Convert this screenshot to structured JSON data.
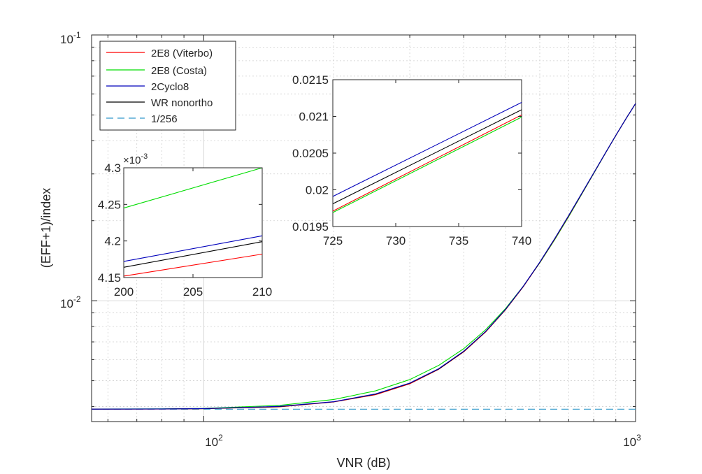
{
  "colors": {
    "viterbo": "#ff0000",
    "costa": "#00dd00",
    "cyclo": "#0000bb",
    "wr": "#000000",
    "ref": "#3399cc",
    "grid": "#cfcfcf"
  },
  "chart_data": [
    {
      "id": "main",
      "type": "line",
      "xscale": "log",
      "yscale": "log",
      "xlabel": "VNR (dB)",
      "ylabel": "(EFF+1)/index",
      "xlim": [
        55,
        1000
      ],
      "ylim": [
        0.00351,
        0.1
      ],
      "grid": true,
      "legend_position": "top-left",
      "x_ticks": [
        {
          "value": 100,
          "base": "10",
          "exp": "2"
        },
        {
          "value": 1000,
          "base": "10",
          "exp": "3"
        }
      ],
      "y_ticks": [
        {
          "value": 0.01,
          "base": "10",
          "exp": "-2"
        },
        {
          "value": 0.1,
          "base": "10",
          "exp": "-1"
        }
      ],
      "series": [
        {
          "name": "2E8 (Viterbo)",
          "color_key": "viterbo",
          "dash": false,
          "x": [
            55,
            80,
            100,
            150,
            200,
            250,
            300,
            350,
            400,
            450,
            500,
            550,
            600,
            650,
            700,
            750,
            800,
            850,
            900,
            950,
            1000
          ],
          "y": [
            0.003911,
            0.003913,
            0.003923,
            0.003986,
            0.00416,
            0.00443,
            0.00487,
            0.00552,
            0.00642,
            0.00764,
            0.00925,
            0.01131,
            0.01392,
            0.01708,
            0.02084,
            0.02521,
            0.03019,
            0.03576,
            0.04186,
            0.04838,
            0.0552
          ]
        },
        {
          "name": "2E8 (Costa)",
          "color_key": "costa",
          "dash": false,
          "x": [
            55,
            80,
            100,
            150,
            200,
            250,
            300,
            350,
            400,
            450,
            500,
            550,
            600,
            650,
            700,
            750,
            800,
            850,
            900,
            950,
            1000
          ],
          "y": [
            0.003912,
            0.003918,
            0.003935,
            0.00404,
            0.00425,
            0.00458,
            0.00505,
            0.00571,
            0.0066,
            0.00779,
            0.00935,
            0.01136,
            0.01388,
            0.01698,
            0.02071,
            0.02511,
            0.03011,
            0.03571,
            0.04183,
            0.04836,
            0.0552
          ]
        },
        {
          "name": "2Cyclo8",
          "color_key": "cyclo",
          "dash": false,
          "x": [
            55,
            80,
            100,
            150,
            200,
            250,
            300,
            350,
            400,
            450,
            500,
            550,
            600,
            650,
            700,
            750,
            800,
            850,
            900,
            950,
            1000
          ],
          "y": [
            0.003911,
            0.003915,
            0.003927,
            0.004005,
            0.00417,
            0.00446,
            0.0049,
            0.00555,
            0.00646,
            0.00768,
            0.00929,
            0.01136,
            0.01397,
            0.01716,
            0.02094,
            0.02531,
            0.03026,
            0.03581,
            0.04189,
            0.0484,
            0.0552
          ]
        },
        {
          "name": "WR nonortho",
          "color_key": "wr",
          "dash": false,
          "x": [
            55,
            80,
            100,
            150,
            200,
            250,
            300,
            350,
            400,
            450,
            500,
            550,
            600,
            650,
            700,
            750,
            800,
            850,
            900,
            950,
            1000
          ],
          "y": [
            0.003911,
            0.003914,
            0.003925,
            0.003995,
            0.004165,
            0.00445,
            0.00489,
            0.00553,
            0.00644,
            0.00766,
            0.00927,
            0.01134,
            0.01394,
            0.01712,
            0.02089,
            0.02526,
            0.03022,
            0.03578,
            0.04188,
            0.04839,
            0.0552
          ]
        },
        {
          "name": "1/256",
          "color_key": "ref",
          "dash": true,
          "x": [
            55,
            1000
          ],
          "y": [
            0.00390625,
            0.00390625
          ]
        }
      ]
    },
    {
      "id": "inset-left",
      "type": "line",
      "xlim": [
        200,
        210
      ],
      "ylim": [
        4.15,
        4.3
      ],
      "multiplier_base": "10",
      "multiplier_exp": "-3",
      "x_ticks": [
        {
          "value": 200,
          "label": "200"
        },
        {
          "value": 205,
          "label": "205"
        },
        {
          "value": 210,
          "label": "210"
        }
      ],
      "y_ticks": [
        {
          "value": 4.15,
          "label": "4.15"
        },
        {
          "value": 4.2,
          "label": "4.2"
        },
        {
          "value": 4.25,
          "label": "4.25"
        },
        {
          "value": 4.3,
          "label": "4.3"
        }
      ],
      "series": [
        {
          "name": "2E8 (Viterbo)",
          "color_key": "viterbo",
          "x": [
            200,
            210
          ],
          "y": [
            4.152,
            4.182
          ]
        },
        {
          "name": "2E8 (Costa)",
          "color_key": "costa",
          "x": [
            200,
            210
          ],
          "y": [
            4.245,
            4.3
          ]
        },
        {
          "name": "2Cyclo8",
          "color_key": "cyclo",
          "x": [
            200,
            210
          ],
          "y": [
            4.172,
            4.207
          ]
        },
        {
          "name": "WR nonortho",
          "color_key": "wr",
          "x": [
            200,
            210
          ],
          "y": [
            4.164,
            4.199
          ]
        }
      ]
    },
    {
      "id": "inset-right",
      "type": "line",
      "xlim": [
        725,
        740
      ],
      "ylim": [
        0.0195,
        0.0215
      ],
      "x_ticks": [
        {
          "value": 725,
          "label": "725"
        },
        {
          "value": 730,
          "label": "730"
        },
        {
          "value": 735,
          "label": "735"
        },
        {
          "value": 740,
          "label": "740"
        }
      ],
      "y_ticks": [
        {
          "value": 0.0195,
          "label": "0.0195"
        },
        {
          "value": 0.02,
          "label": "0.02"
        },
        {
          "value": 0.0205,
          "label": "0.0205"
        },
        {
          "value": 0.021,
          "label": "0.021"
        },
        {
          "value": 0.0215,
          "label": "0.0215"
        }
      ],
      "series": [
        {
          "name": "2E8 (Viterbo)",
          "color_key": "viterbo",
          "x": [
            725,
            740
          ],
          "y": [
            0.01971,
            0.02102
          ]
        },
        {
          "name": "2E8 (Costa)",
          "color_key": "costa",
          "x": [
            725,
            740
          ],
          "y": [
            0.01969,
            0.02099
          ]
        },
        {
          "name": "2Cyclo8",
          "color_key": "cyclo",
          "x": [
            725,
            740
          ],
          "y": [
            0.01991,
            0.02119
          ]
        },
        {
          "name": "WR nonortho",
          "color_key": "wr",
          "x": [
            725,
            740
          ],
          "y": [
            0.01981,
            0.02109
          ]
        }
      ]
    }
  ]
}
